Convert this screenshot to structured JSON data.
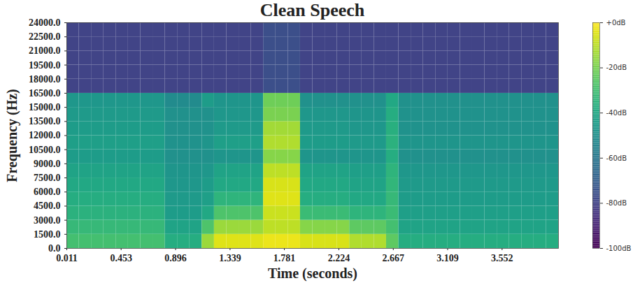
{
  "chart_data": {
    "type": "heatmap",
    "title": "Clean Speech",
    "x_label": "Time (seconds)",
    "y_label": "Frequency (Hz)",
    "color": "viridis",
    "xlim": [
      0.011,
      4.011
    ],
    "xticks": [
      0.011,
      0.453,
      0.896,
      1.339,
      1.781,
      2.224,
      2.667,
      3.109,
      3.552
    ],
    "ylim": [
      0,
      24000
    ],
    "yticks": [
      {
        "value": 0,
        "label": "0.0"
      },
      {
        "value": 1500,
        "label": "1500.0"
      },
      {
        "value": 3000,
        "label": "3000.0"
      },
      {
        "value": 4500,
        "label": "4500.0"
      },
      {
        "value": 6000,
        "label": "6000.0"
      },
      {
        "value": 7500,
        "label": "7500.0"
      },
      {
        "value": 9000,
        "label": "9000.0"
      },
      {
        "value": 10500,
        "label": "10500.0"
      },
      {
        "value": 12000,
        "label": "12000.0"
      },
      {
        "value": 13500,
        "label": "13500.0"
      },
      {
        "value": 15000,
        "label": "15000.0"
      },
      {
        "value": 16500,
        "label": "16500.0"
      },
      {
        "value": 18000,
        "label": "18000.0"
      },
      {
        "value": 19500,
        "label": "19500.0"
      },
      {
        "value": 21000,
        "label": "21000.0"
      },
      {
        "value": 22500,
        "label": "22500.0"
      },
      {
        "value": 24000,
        "label": "24000.0"
      }
    ],
    "time_bins": [
      0.011,
      0.111,
      0.211,
      0.311,
      0.411,
      0.511,
      0.611,
      0.711,
      0.811,
      0.911,
      1.011,
      1.111,
      1.211,
      1.311,
      1.411,
      1.511,
      1.611,
      1.711,
      1.811,
      1.911,
      2.011,
      2.111,
      2.211,
      2.311,
      2.411,
      2.511,
      2.611,
      2.711,
      2.811,
      2.911,
      3.011,
      3.111,
      3.211,
      3.311,
      3.411,
      3.511,
      3.611,
      3.711,
      3.811,
      3.911,
      4.011
    ],
    "frequency_bins": [
      0,
      1500,
      3000,
      4500,
      6000,
      7500,
      9000,
      10500,
      12000,
      13500,
      15000,
      16500,
      18000,
      19500,
      21000,
      22500,
      24000
    ],
    "values": [
      [
        -30,
        -30,
        -30,
        -30,
        -30,
        -30,
        -30,
        -30,
        -38,
        -38,
        -38,
        -15,
        -5,
        -5,
        -5,
        -5,
        -3,
        -3,
        -3,
        -6,
        -6,
        -6,
        -6,
        -12,
        -12,
        -12,
        -25,
        -38,
        -38,
        -38,
        -38,
        -38,
        -38,
        -38,
        -38,
        -38,
        -38,
        -38,
        -38,
        -38
      ],
      [
        -33,
        -33,
        -33,
        -33,
        -33,
        -33,
        -33,
        -33,
        -42,
        -42,
        -42,
        -28,
        -15,
        -15,
        -15,
        -15,
        -10,
        -10,
        -10,
        -18,
        -18,
        -18,
        -18,
        -25,
        -25,
        -25,
        -30,
        -42,
        -42,
        -42,
        -42,
        -42,
        -42,
        -42,
        -42,
        -42,
        -42,
        -42,
        -42,
        -42
      ],
      [
        -36,
        -36,
        -36,
        -36,
        -36,
        -36,
        -36,
        -36,
        -45,
        -45,
        -45,
        -40,
        -28,
        -28,
        -28,
        -28,
        -8,
        -8,
        -8,
        -32,
        -32,
        -32,
        -32,
        -35,
        -35,
        -35,
        -32,
        -44,
        -44,
        -44,
        -44,
        -44,
        -44,
        -44,
        -44,
        -44,
        -44,
        -44,
        -44,
        -44
      ],
      [
        -38,
        -38,
        -38,
        -38,
        -38,
        -38,
        -38,
        -38,
        -46,
        -46,
        -46,
        -44,
        -35,
        -35,
        -35,
        -35,
        -5,
        -5,
        -5,
        -38,
        -38,
        -38,
        -38,
        -40,
        -40,
        -40,
        -33,
        -45,
        -45,
        -45,
        -45,
        -45,
        -45,
        -45,
        -45,
        -45,
        -45,
        -45,
        -45,
        -45
      ],
      [
        -40,
        -40,
        -40,
        -40,
        -40,
        -40,
        -40,
        -40,
        -47,
        -47,
        -47,
        -45,
        -40,
        -40,
        -40,
        -40,
        -6,
        -6,
        -6,
        -40,
        -40,
        -40,
        -40,
        -42,
        -42,
        -42,
        -34,
        -46,
        -46,
        -46,
        -46,
        -46,
        -46,
        -46,
        -46,
        -46,
        -46,
        -46,
        -46,
        -46
      ],
      [
        -42,
        -42,
        -42,
        -42,
        -42,
        -42,
        -42,
        -42,
        -48,
        -48,
        -48,
        -47,
        -42,
        -42,
        -42,
        -42,
        -10,
        -10,
        -10,
        -42,
        -42,
        -42,
        -42,
        -44,
        -44,
        -44,
        -35,
        -47,
        -47,
        -47,
        -47,
        -47,
        -47,
        -47,
        -47,
        -47,
        -47,
        -47,
        -47,
        -47
      ],
      [
        -45,
        -45,
        -45,
        -45,
        -45,
        -45,
        -45,
        -45,
        -50,
        -50,
        -50,
        -50,
        -48,
        -48,
        -48,
        -48,
        -18,
        -18,
        -18,
        -48,
        -48,
        -48,
        -48,
        -48,
        -48,
        -48,
        -38,
        -50,
        -50,
        -50,
        -50,
        -50,
        -50,
        -50,
        -50,
        -50,
        -50,
        -50,
        -50,
        -50
      ],
      [
        -44,
        -44,
        -44,
        -44,
        -44,
        -44,
        -44,
        -44,
        -49,
        -49,
        -49,
        -48,
        -44,
        -44,
        -44,
        -44,
        -12,
        -12,
        -12,
        -45,
        -45,
        -45,
        -45,
        -46,
        -46,
        -46,
        -36,
        -48,
        -48,
        -48,
        -48,
        -48,
        -48,
        -48,
        -48,
        -48,
        -48,
        -48,
        -48,
        -48
      ],
      [
        -45,
        -45,
        -45,
        -45,
        -45,
        -45,
        -45,
        -45,
        -50,
        -50,
        -50,
        -49,
        -46,
        -46,
        -46,
        -46,
        -14,
        -14,
        -14,
        -46,
        -46,
        -46,
        -46,
        -47,
        -47,
        -47,
        -37,
        -49,
        -49,
        -49,
        -49,
        -49,
        -49,
        -49,
        -49,
        -49,
        -49,
        -49,
        -49,
        -49
      ],
      [
        -46,
        -46,
        -46,
        -46,
        -46,
        -46,
        -46,
        -46,
        -50,
        -50,
        -50,
        -50,
        -47,
        -47,
        -47,
        -47,
        -20,
        -20,
        -20,
        -47,
        -47,
        -47,
        -47,
        -48,
        -48,
        -48,
        -38,
        -49,
        -49,
        -49,
        -49,
        -49,
        -49,
        -49,
        -49,
        -49,
        -49,
        -49,
        -49,
        -49
      ],
      [
        -47,
        -47,
        -47,
        -47,
        -47,
        -47,
        -47,
        -47,
        -52,
        -52,
        -52,
        -45,
        -48,
        -48,
        -48,
        -48,
        -22,
        -22,
        -22,
        -50,
        -50,
        -50,
        -50,
        -50,
        -50,
        -50,
        -40,
        -50,
        -50,
        -50,
        -50,
        -50,
        -50,
        -50,
        -50,
        -50,
        -50,
        -50,
        -50,
        -50
      ],
      [
        -80,
        -80,
        -80,
        -80,
        -80,
        -80,
        -80,
        -80,
        -80,
        -80,
        -80,
        -80,
        -80,
        -80,
        -80,
        -80,
        -76,
        -76,
        -76,
        -80,
        -80,
        -80,
        -80,
        -80,
        -80,
        -80,
        -80,
        -80,
        -80,
        -80,
        -80,
        -80,
        -80,
        -80,
        -80,
        -80,
        -80,
        -80,
        -80,
        -80
      ],
      [
        -80,
        -80,
        -80,
        -80,
        -80,
        -80,
        -80,
        -80,
        -80,
        -80,
        -80,
        -80,
        -80,
        -80,
        -80,
        -80,
        -76,
        -76,
        -76,
        -80,
        -80,
        -80,
        -80,
        -80,
        -80,
        -80,
        -80,
        -80,
        -80,
        -80,
        -80,
        -80,
        -80,
        -80,
        -80,
        -80,
        -80,
        -80,
        -80,
        -80
      ],
      [
        -80,
        -80,
        -80,
        -80,
        -80,
        -80,
        -80,
        -80,
        -80,
        -80,
        -80,
        -80,
        -80,
        -80,
        -80,
        -80,
        -76,
        -76,
        -76,
        -80,
        -80,
        -80,
        -80,
        -80,
        -80,
        -80,
        -80,
        -80,
        -80,
        -80,
        -80,
        -80,
        -80,
        -80,
        -80,
        -80,
        -80,
        -80,
        -80,
        -80
      ],
      [
        -80,
        -80,
        -80,
        -80,
        -80,
        -80,
        -80,
        -80,
        -80,
        -80,
        -80,
        -80,
        -80,
        -80,
        -80,
        -80,
        -76,
        -76,
        -76,
        -80,
        -80,
        -80,
        -80,
        -80,
        -80,
        -80,
        -80,
        -80,
        -80,
        -80,
        -80,
        -80,
        -80,
        -80,
        -80,
        -80,
        -80,
        -80,
        -80,
        -80
      ],
      [
        -80,
        -80,
        -80,
        -80,
        -80,
        -80,
        -80,
        -80,
        -80,
        -80,
        -80,
        -80,
        -80,
        -80,
        -80,
        -80,
        -76,
        -76,
        -76,
        -80,
        -80,
        -80,
        -80,
        -80,
        -80,
        -80,
        -80,
        -80,
        -80,
        -80,
        -80,
        -80,
        -80,
        -80,
        -80,
        -80,
        -80,
        -80,
        -80,
        -80
      ]
    ],
    "colorbar": {
      "range": [
        -100,
        0
      ],
      "ticks": [
        {
          "value": 0,
          "label": "+0dB"
        },
        {
          "value": -20,
          "label": "-20dB"
        },
        {
          "value": -40,
          "label": "-40dB"
        },
        {
          "value": -60,
          "label": "-60dB"
        },
        {
          "value": -80,
          "label": "-80dB"
        },
        {
          "value": -100,
          "label": "-100dB"
        }
      ]
    }
  }
}
